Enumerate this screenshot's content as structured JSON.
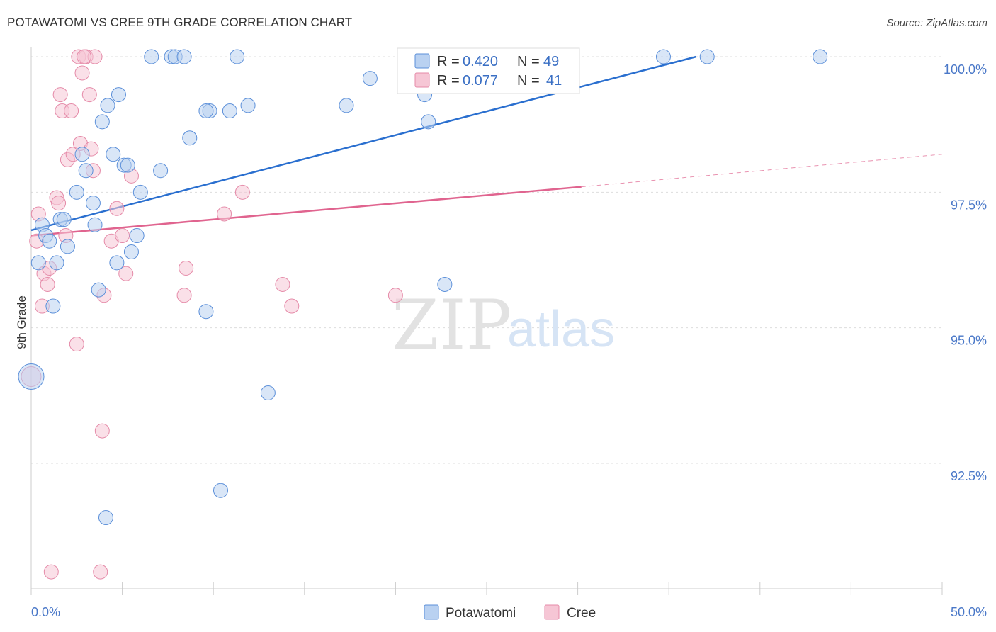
{
  "title": "POTAWATOMI VS CREE 9TH GRADE CORRELATION CHART",
  "source": "Source: ZipAtlas.com",
  "watermark": {
    "zip": "ZIP",
    "atlas": "atlas"
  },
  "colors": {
    "blue": "#5b8fd9",
    "blue_fill": "#b9d1f1",
    "blue_line": "#2a6fcf",
    "pink": "#e58aa8",
    "pink_fill": "#f6c6d5",
    "pink_line": "#e0648f",
    "axis_text": "#4a78c8",
    "grid": "#dddddd"
  },
  "legend": {
    "rows": [
      {
        "r_label": "R = ",
        "r_value": "0.420",
        "n_label": "N = ",
        "n_value": "49"
      },
      {
        "r_label": "R = ",
        "r_value": "0.077",
        "n_label": "N = ",
        "n_value": "41"
      }
    ]
  },
  "bottom_legend": [
    "Potawatomi",
    "Cree"
  ],
  "chart_data": {
    "type": "scatter",
    "title": "POTAWATOMI VS CREE 9TH GRADE CORRELATION CHART",
    "xlabel": "",
    "ylabel": "9th Grade",
    "xlim": [
      0,
      50
    ],
    "ylim": [
      90.5,
      100.4
    ],
    "x_tick_labels": [
      "0.0%",
      "50.0%"
    ],
    "y_ticks": [
      92.5,
      95.0,
      97.5,
      100.0
    ],
    "y_tick_labels": [
      "92.5%",
      "95.0%",
      "97.5%",
      "100.0%"
    ],
    "series": [
      {
        "name": "Potawatomi",
        "R": 0.42,
        "N": 49,
        "trend": {
          "x": [
            0,
            36.5
          ],
          "y": [
            96.8,
            100.0
          ]
        },
        "points": [
          [
            0.0,
            94.1,
            18
          ],
          [
            0.4,
            96.2,
            10
          ],
          [
            0.6,
            96.9,
            10
          ],
          [
            0.8,
            96.7,
            10
          ],
          [
            1.0,
            96.6,
            10
          ],
          [
            1.2,
            95.4,
            10
          ],
          [
            1.4,
            96.2,
            10
          ],
          [
            1.6,
            97.0,
            10
          ],
          [
            1.8,
            97.0,
            10
          ],
          [
            2.0,
            96.5,
            10
          ],
          [
            2.5,
            97.5,
            10
          ],
          [
            2.8,
            98.2,
            10
          ],
          [
            3.0,
            97.9,
            10
          ],
          [
            3.4,
            97.3,
            10
          ],
          [
            3.5,
            96.9,
            10
          ],
          [
            3.7,
            95.7,
            10
          ],
          [
            3.9,
            98.8,
            10
          ],
          [
            4.2,
            99.1,
            10
          ],
          [
            4.5,
            98.2,
            10
          ],
          [
            4.7,
            96.2,
            10
          ],
          [
            4.8,
            99.3,
            10
          ],
          [
            5.1,
            98.0,
            10
          ],
          [
            5.3,
            98.0,
            10
          ],
          [
            5.5,
            96.4,
            10
          ],
          [
            5.8,
            96.7,
            10
          ],
          [
            6.0,
            97.5,
            10
          ],
          [
            6.6,
            100.0,
            10
          ],
          [
            7.1,
            97.9,
            10
          ],
          [
            7.7,
            100.0,
            10
          ],
          [
            7.9,
            100.0,
            10
          ],
          [
            8.4,
            100.0,
            10
          ],
          [
            8.7,
            98.5,
            10
          ],
          [
            9.6,
            95.3,
            10
          ],
          [
            9.8,
            99.0,
            10
          ],
          [
            10.4,
            92.0,
            10
          ],
          [
            10.9,
            99.0,
            10
          ],
          [
            11.3,
            100.0,
            10
          ],
          [
            11.9,
            99.1,
            10
          ],
          [
            13.0,
            93.8,
            10
          ],
          [
            17.3,
            99.1,
            10
          ],
          [
            18.6,
            99.6,
            10
          ],
          [
            21.6,
            99.3,
            10
          ],
          [
            21.8,
            98.8,
            10
          ],
          [
            22.7,
            95.8,
            10
          ],
          [
            34.7,
            100.0,
            10
          ],
          [
            37.1,
            100.0,
            10
          ],
          [
            43.3,
            100.0,
            10
          ],
          [
            9.6,
            99.0,
            10
          ],
          [
            4.1,
            91.5,
            10
          ]
        ]
      },
      {
        "name": "Cree",
        "R": 0.077,
        "N": 41,
        "trend": {
          "x": [
            0,
            30.2
          ],
          "y": [
            96.7,
            97.6
          ],
          "dashed_extension": {
            "x": [
              30.2,
              50
            ],
            "y": [
              97.6,
              98.2
            ]
          }
        },
        "points": [
          [
            0.0,
            94.1,
            14
          ],
          [
            0.3,
            96.6,
            10
          ],
          [
            0.4,
            97.1,
            10
          ],
          [
            0.6,
            95.4,
            10
          ],
          [
            0.7,
            96.0,
            10
          ],
          [
            0.9,
            95.8,
            10
          ],
          [
            1.0,
            96.1,
            10
          ],
          [
            1.1,
            90.5,
            10
          ],
          [
            1.4,
            97.4,
            10
          ],
          [
            1.5,
            97.3,
            10
          ],
          [
            1.6,
            99.3,
            10
          ],
          [
            1.7,
            99.0,
            10
          ],
          [
            1.9,
            96.7,
            10
          ],
          [
            2.0,
            98.1,
            10
          ],
          [
            2.2,
            99.0,
            10
          ],
          [
            2.3,
            98.2,
            10
          ],
          [
            2.5,
            94.7,
            10
          ],
          [
            2.6,
            100.0,
            10
          ],
          [
            2.7,
            98.4,
            10
          ],
          [
            2.8,
            99.7,
            10
          ],
          [
            3.0,
            100.0,
            10
          ],
          [
            3.2,
            99.3,
            10
          ],
          [
            3.3,
            98.3,
            10
          ],
          [
            3.4,
            97.9,
            10
          ],
          [
            3.5,
            100.0,
            10
          ],
          [
            3.8,
            90.5,
            10
          ],
          [
            3.9,
            93.1,
            10
          ],
          [
            4.0,
            95.6,
            10
          ],
          [
            4.4,
            96.6,
            10
          ],
          [
            4.7,
            97.2,
            10
          ],
          [
            5.0,
            96.7,
            10
          ],
          [
            5.2,
            96.0,
            10
          ],
          [
            5.5,
            97.8,
            10
          ],
          [
            8.4,
            95.6,
            10
          ],
          [
            8.5,
            96.1,
            10
          ],
          [
            10.6,
            97.1,
            10
          ],
          [
            11.6,
            97.5,
            10
          ],
          [
            13.8,
            95.8,
            10
          ],
          [
            14.3,
            95.4,
            10
          ],
          [
            20.0,
            95.6,
            10
          ],
          [
            2.9,
            100.0,
            10
          ]
        ]
      }
    ]
  }
}
